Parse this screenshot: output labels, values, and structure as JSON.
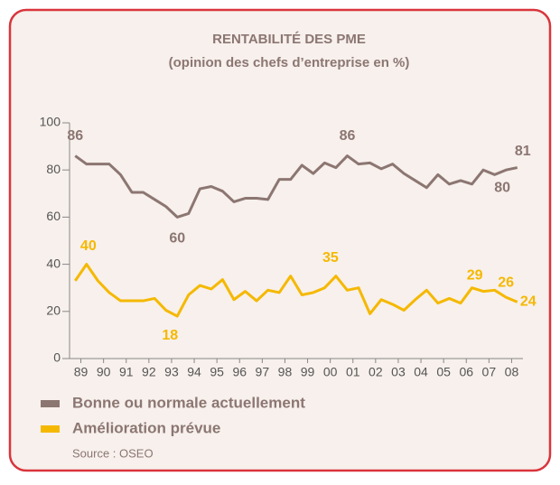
{
  "chart_data": {
    "type": "line",
    "title": "RENTABILITÉ DES PME",
    "subtitle": "(opinion des chefs d’entreprise en %)",
    "source": "Source : OSEO",
    "x": [
      1989.25,
      1989.75,
      1990.25,
      1990.75,
      1991.25,
      1991.75,
      1992.25,
      1992.75,
      1993.25,
      1993.75,
      1994.25,
      1994.75,
      1995.25,
      1995.75,
      1996.25,
      1996.75,
      1997.25,
      1997.75,
      1998.25,
      1998.75,
      1999.25,
      1999.75,
      2000.25,
      2000.75,
      2001.25,
      2001.75,
      2002.25,
      2002.75,
      2003.25,
      2003.75,
      2004.25,
      2004.75,
      2005.25,
      2005.75,
      2006.25,
      2006.75,
      2007.25,
      2007.75,
      2008.25,
      2008.75
    ],
    "xlim": [
      1989,
      2009
    ],
    "xticks": [
      {
        "value": 1989.5,
        "label": "89"
      },
      {
        "value": 1990.5,
        "label": "90"
      },
      {
        "value": 1991.5,
        "label": "91"
      },
      {
        "value": 1992.5,
        "label": "92"
      },
      {
        "value": 1993.5,
        "label": "93"
      },
      {
        "value": 1994.5,
        "label": "94"
      },
      {
        "value": 1995.5,
        "label": "95"
      },
      {
        "value": 1996.5,
        "label": "96"
      },
      {
        "value": 1997.5,
        "label": "97"
      },
      {
        "value": 1998.5,
        "label": "98"
      },
      {
        "value": 1999.5,
        "label": "99"
      },
      {
        "value": 2000.5,
        "label": "00"
      },
      {
        "value": 2001.5,
        "label": "01"
      },
      {
        "value": 2002.5,
        "label": "02"
      },
      {
        "value": 2003.5,
        "label": "03"
      },
      {
        "value": 2004.5,
        "label": "04"
      },
      {
        "value": 2005.5,
        "label": "05"
      },
      {
        "value": 2006.5,
        "label": "06"
      },
      {
        "value": 2007.5,
        "label": "07"
      },
      {
        "value": 2008.5,
        "label": "08"
      }
    ],
    "ylim": [
      0,
      100
    ],
    "yticks": [
      0,
      20,
      40,
      60,
      80,
      100
    ],
    "grid": false,
    "series": [
      {
        "name": "Bonne ou normale actuellement",
        "color": "#8c7672",
        "values": [
          86,
          82.5,
          82.5,
          82.5,
          78,
          70.5,
          70.5,
          67.5,
          64.5,
          60,
          61.5,
          72,
          73,
          71,
          66.5,
          68,
          68,
          67.5,
          76,
          76,
          82,
          78.5,
          83,
          81,
          86,
          82.5,
          83,
          80.5,
          82.5,
          78.5,
          75.5,
          72.5,
          78,
          74,
          75.5,
          74,
          80,
          78,
          80,
          81
        ],
        "value_labels": [
          "86",
          null,
          null,
          null,
          null,
          null,
          null,
          null,
          null,
          "60",
          null,
          null,
          null,
          null,
          null,
          null,
          null,
          null,
          null,
          null,
          null,
          null,
          null,
          null,
          "86",
          null,
          null,
          null,
          null,
          null,
          null,
          null,
          null,
          null,
          null,
          null,
          null,
          null,
          "80",
          "81"
        ]
      },
      {
        "name": "Amélioration prévue",
        "color": "#f5b800",
        "values": [
          33,
          40,
          33,
          28,
          24.5,
          24.5,
          24.5,
          25.5,
          20.5,
          18,
          27,
          31,
          29.5,
          33.5,
          25,
          28.5,
          24.5,
          29,
          28,
          35,
          27,
          28,
          30,
          35,
          29,
          30,
          19,
          25,
          23,
          20.5,
          25,
          29,
          23.5,
          25.5,
          23.5,
          30,
          28.5,
          29,
          26,
          24
        ],
        "value_labels": [
          null,
          "40",
          null,
          null,
          null,
          null,
          null,
          null,
          null,
          "18",
          null,
          null,
          null,
          null,
          null,
          null,
          null,
          null,
          null,
          null,
          null,
          null,
          null,
          "35",
          null,
          null,
          null,
          null,
          null,
          null,
          null,
          null,
          null,
          null,
          null,
          null,
          null,
          "29",
          "26",
          "24"
        ]
      }
    ]
  }
}
